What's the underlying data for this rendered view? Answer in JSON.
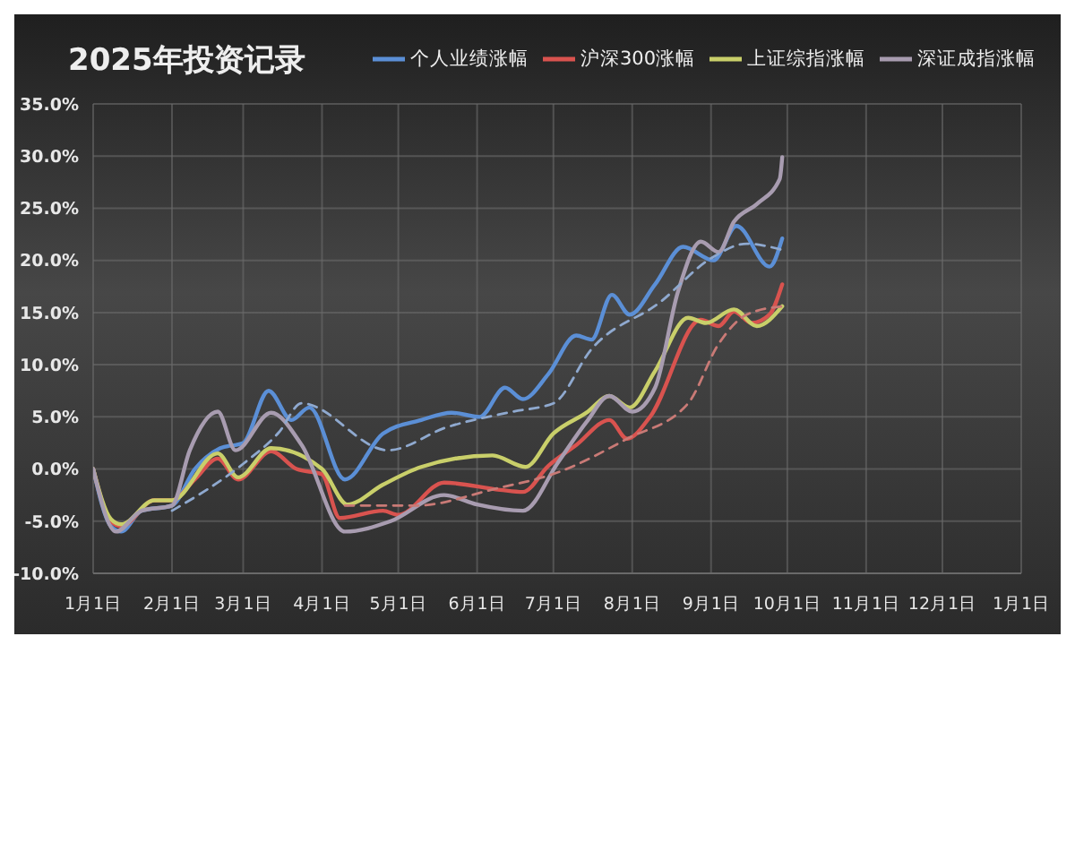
{
  "chart_data": {
    "type": "line",
    "title": "2025年投资记录",
    "legend": "top right",
    "grid": true,
    "marker": "none",
    "xlim": [
      "2025-01-01",
      "2026-01-01"
    ],
    "xticks": [
      {
        "value": "2025-01-01",
        "label": "1月1日"
      },
      {
        "value": "2025-02-01",
        "label": "2月1日"
      },
      {
        "value": "2025-03-01",
        "label": "3月1日"
      },
      {
        "value": "2025-04-01",
        "label": "4月1日"
      },
      {
        "value": "2025-05-01",
        "label": "5月1日"
      },
      {
        "value": "2025-06-01",
        "label": "6月1日"
      },
      {
        "value": "2025-07-01",
        "label": "7月1日"
      },
      {
        "value": "2025-08-01",
        "label": "8月1日"
      },
      {
        "value": "2025-09-01",
        "label": "9月1日"
      },
      {
        "value": "2025-10-01",
        "label": "10月1日"
      },
      {
        "value": "2025-11-01",
        "label": "11月1日"
      },
      {
        "value": "2025-12-01",
        "label": "12月1日"
      },
      {
        "value": "2026-01-01",
        "label": "1月1日"
      }
    ],
    "ylim": [
      -10,
      35
    ],
    "yticks": [
      {
        "value": -10,
        "label": "-10.0%"
      },
      {
        "value": -5,
        "label": "-5.0%"
      },
      {
        "value": 0,
        "label": "0.0%"
      },
      {
        "value": 5,
        "label": "5.0%"
      },
      {
        "value": 10,
        "label": "10.0%"
      },
      {
        "value": 15,
        "label": "15.0%"
      },
      {
        "value": 20,
        "label": "20.0%"
      },
      {
        "value": 25,
        "label": "25.0%"
      },
      {
        "value": 30,
        "label": "30.0%"
      },
      {
        "value": 35,
        "label": "35.0%"
      }
    ],
    "series": [
      {
        "name": "个人业绩涨幅",
        "color": "#5b8fd6",
        "line_style": "solid",
        "x": [
          "2025-01-01",
          "2025-01-08",
          "2025-01-12",
          "2025-01-20",
          "2025-02-01",
          "2025-02-10",
          "2025-02-20",
          "2025-03-01",
          "2025-03-11",
          "2025-03-20",
          "2025-03-27",
          "2025-04-10",
          "2025-04-25",
          "2025-05-10",
          "2025-05-22",
          "2025-06-02",
          "2025-06-12",
          "2025-06-19",
          "2025-06-29",
          "2025-07-10",
          "2025-07-16",
          "2025-07-24",
          "2025-07-31",
          "2025-08-10",
          "2025-08-21",
          "2025-09-02",
          "2025-09-11",
          "2025-09-24",
          "2025-09-29"
        ],
        "values": [
          0,
          -5.5,
          -6,
          -4,
          -3.5,
          0,
          2,
          2.5,
          7.5,
          4.7,
          5.9,
          -1,
          3.4,
          4.7,
          5.4,
          5,
          7.8,
          6.7,
          9.1,
          12.8,
          12.4,
          16.7,
          14.8,
          17.7,
          21.3,
          20,
          23.3,
          19.4,
          22.1
        ]
      },
      {
        "name": "沪深300涨幅",
        "color": "#d9534f",
        "line_style": "solid",
        "x": [
          "2025-01-01",
          "2025-01-08",
          "2025-01-12",
          "2025-01-25",
          "2025-02-01",
          "2025-02-10",
          "2025-02-19",
          "2025-02-27",
          "2025-03-12",
          "2025-03-22",
          "2025-04-01",
          "2025-04-08",
          "2025-04-25",
          "2025-05-01",
          "2025-05-19",
          "2025-06-10",
          "2025-06-19",
          "2025-06-29",
          "2025-07-10",
          "2025-07-23",
          "2025-07-30",
          "2025-08-08",
          "2025-08-28",
          "2025-09-04",
          "2025-09-10",
          "2025-09-17",
          "2025-09-24",
          "2025-09-29"
        ],
        "values": [
          0,
          -5,
          -5.5,
          -3,
          -3,
          -1,
          1,
          -1,
          1.7,
          0,
          -0.5,
          -4.7,
          -4,
          -4.4,
          -1.3,
          -2,
          -2.2,
          0.3,
          2.3,
          4.7,
          2.9,
          5,
          14.3,
          13.7,
          15.1,
          14,
          14.8,
          17.7
        ]
      },
      {
        "name": "上证综指涨幅",
        "color": "#c9cf6a",
        "line_style": "solid",
        "x": [
          "2025-01-01",
          "2025-01-08",
          "2025-01-12",
          "2025-01-25",
          "2025-02-01",
          "2025-02-19",
          "2025-02-27",
          "2025-03-12",
          "2025-04-01",
          "2025-04-11",
          "2025-04-25",
          "2025-05-10",
          "2025-06-07",
          "2025-06-20",
          "2025-07-01",
          "2025-07-14",
          "2025-07-23",
          "2025-07-31",
          "2025-08-10",
          "2025-08-23",
          "2025-08-30",
          "2025-09-10",
          "2025-09-19",
          "2025-09-29"
        ],
        "values": [
          0,
          -4.8,
          -5.3,
          -3,
          -3,
          1.5,
          -0.8,
          2,
          0,
          -3.4,
          -1.5,
          0.2,
          1.3,
          0.2,
          3.4,
          5.4,
          7,
          5.9,
          9.4,
          14.5,
          14,
          15.3,
          13.7,
          15.6
        ]
      },
      {
        "name": "深证成指涨幅",
        "color": "#a89cb0",
        "line_style": "solid",
        "x": [
          "2025-01-01",
          "2025-01-10",
          "2025-01-20",
          "2025-02-01",
          "2025-02-08",
          "2025-02-19",
          "2025-02-26",
          "2025-03-12",
          "2025-03-24",
          "2025-04-10",
          "2025-04-28",
          "2025-05-19",
          "2025-06-01",
          "2025-06-19",
          "2025-07-03",
          "2025-07-14",
          "2025-07-23",
          "2025-08-01",
          "2025-08-10",
          "2025-08-19",
          "2025-08-28",
          "2025-09-04",
          "2025-09-10",
          "2025-09-19",
          "2025-09-28",
          "2025-09-29"
        ],
        "values": [
          0,
          -6,
          -4,
          -3.5,
          1.8,
          5.5,
          1.8,
          5.4,
          2.3,
          -6,
          -5,
          -2.5,
          -3.4,
          -4,
          0.7,
          4.5,
          7,
          5.5,
          7.8,
          17,
          21.8,
          20.8,
          23.7,
          25.4,
          27.8,
          29.9
        ]
      },
      {
        "color": "#8fa9cf",
        "line_style": "dashed",
        "x": [
          "2025-02-01",
          "2025-03-01",
          "2025-03-15",
          "2025-03-24",
          "2025-04-27",
          "2025-05-20",
          "2025-06-15",
          "2025-07-01",
          "2025-07-16",
          "2025-08-12",
          "2025-09-01",
          "2025-09-15",
          "2025-09-29"
        ],
        "values": [
          -4,
          0.5,
          3.5,
          6.3,
          1.8,
          4,
          5.5,
          6.3,
          11.5,
          16,
          20.2,
          21.6,
          21
        ]
      },
      {
        "color": "#c97a76",
        "line_style": "dashed",
        "x": [
          "2025-04-10",
          "2025-05-08",
          "2025-06-08",
          "2025-07-03",
          "2025-07-30",
          "2025-08-23",
          "2025-09-04",
          "2025-09-15",
          "2025-09-29"
        ],
        "values": [
          -3.5,
          -3.5,
          -1.9,
          -0.3,
          2.9,
          6.3,
          12,
          14.8,
          15.6
        ]
      }
    ]
  }
}
